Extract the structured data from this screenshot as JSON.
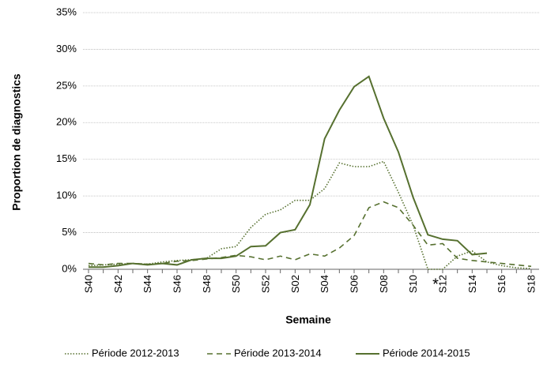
{
  "chart_data": {
    "type": "line",
    "y_label": "Proportion de diagnostics",
    "x_label": "Semaine",
    "categories": [
      "S40",
      null,
      "S42",
      null,
      "S44",
      null,
      "S46",
      null,
      "S48",
      null,
      "S50",
      null,
      "S52",
      null,
      "S02",
      null,
      "S04",
      null,
      "S06",
      null,
      "S08",
      null,
      "S10",
      null,
      "S12",
      null,
      "S14",
      null,
      "S16",
      null,
      "S18"
    ],
    "series": [
      {
        "name": "Période 2012-2013",
        "color": "#56702f",
        "dash": "dotted",
        "values": [
          0.5,
          0.6,
          0.7,
          0.8,
          0.7,
          1.0,
          1.2,
          1.3,
          1.5,
          2.8,
          3.1,
          5.7,
          7.5,
          8.1,
          9.4,
          9.4,
          11.0,
          14.5,
          14.0,
          14.0,
          14.7,
          10.5,
          6.0,
          0,
          0,
          1.8,
          2.5,
          1.0,
          0.5,
          0.2,
          0.1
        ]
      },
      {
        "name": "Période 2013-2014",
        "color": "#56702f",
        "dash": "dashed",
        "values": [
          0.8,
          0.6,
          0.8,
          0.8,
          0.7,
          0.8,
          1.1,
          1.2,
          1.4,
          1.6,
          1.9,
          1.7,
          1.3,
          1.8,
          1.3,
          2.1,
          1.8,
          2.9,
          4.6,
          8.4,
          9.2,
          8.4,
          6.0,
          3.3,
          3.5,
          1.5,
          1.2,
          1.0,
          0.8,
          0.6,
          0.4
        ]
      },
      {
        "name": "Période 2014-2015",
        "color": "#56702f",
        "dash": "solid",
        "values": [
          0.3,
          0.3,
          0.5,
          0.8,
          0.6,
          0.8,
          0.6,
          1.3,
          1.5,
          1.5,
          1.8,
          3.1,
          3.2,
          5.0,
          5.4,
          8.8,
          17.8,
          21.7,
          24.9,
          26.3,
          20.6,
          16.0,
          9.8,
          4.7,
          4.1,
          3.9,
          2.0,
          2.2,
          null,
          null,
          null
        ]
      }
    ],
    "annotation": "*",
    "ylim": [
      0,
      35
    ],
    "yticks": [
      {
        "value": 0,
        "label": "0%"
      },
      {
        "value": 5,
        "label": "5%"
      },
      {
        "value": 10,
        "label": "10%"
      },
      {
        "value": 15,
        "label": "15%"
      },
      {
        "value": 20,
        "label": "20%"
      },
      {
        "value": 25,
        "label": "25%"
      },
      {
        "value": 30,
        "label": "30%"
      },
      {
        "value": 35,
        "label": "35%"
      }
    ],
    "grid": true
  }
}
